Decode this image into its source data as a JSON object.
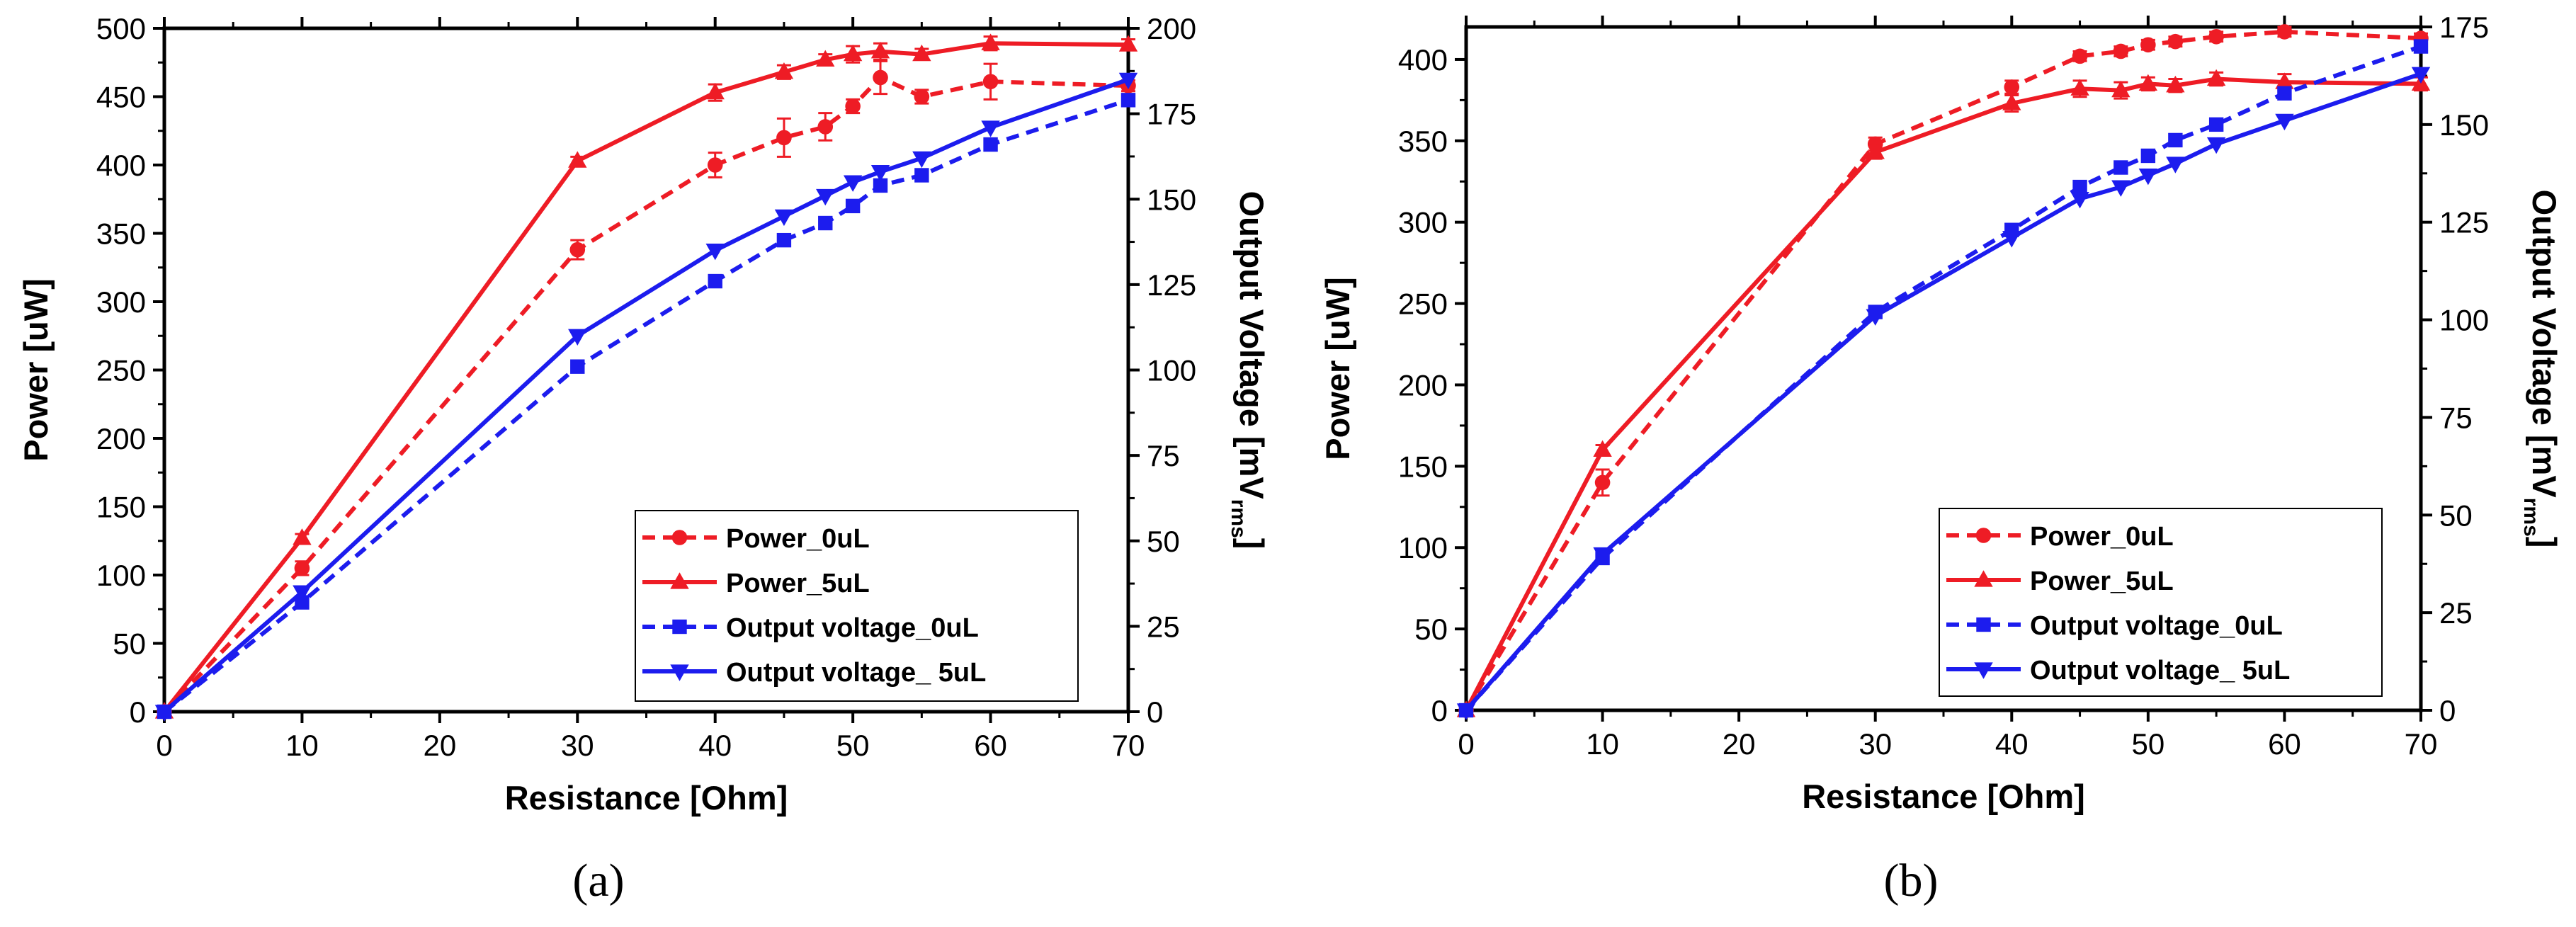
{
  "chart_data": [
    {
      "type": "line",
      "panel_label": "(a)",
      "title": "",
      "xlabel": "Resistance [Ohm]",
      "ylabel_left": "Power [uW]",
      "ylabel_right_main": "Output Voltage [mV",
      "ylabel_right_sub": "rms",
      "ylabel_right_end": "]",
      "xlim": [
        0,
        70
      ],
      "ylim_left": [
        0,
        500
      ],
      "ylim_right": [
        0,
        200
      ],
      "xticks": [
        0,
        10,
        20,
        30,
        40,
        50,
        60,
        70
      ],
      "yticks_left": [
        0,
        50,
        100,
        150,
        200,
        250,
        300,
        350,
        400,
        450,
        500
      ],
      "yticks_right": [
        0,
        25,
        50,
        75,
        100,
        125,
        150,
        175,
        200
      ],
      "grid": false,
      "legend_position": "bottom-right",
      "series": [
        {
          "name": "Power_0uL",
          "axis": "left",
          "color": "#ee1c25",
          "dash": "dashed",
          "marker": "circle",
          "x": [
            0,
            10,
            30,
            40,
            45,
            48,
            50,
            52,
            55,
            60,
            70
          ],
          "y": [
            0,
            105,
            338,
            400,
            420,
            428,
            443,
            464,
            450,
            461,
            458
          ],
          "err": [
            0,
            5,
            7,
            9,
            14,
            10,
            5,
            12,
            5,
            13,
            4
          ]
        },
        {
          "name": "Power_5uL",
          "axis": "left",
          "color": "#ee1c25",
          "dash": "solid",
          "marker": "triangle-up",
          "x": [
            0,
            10,
            30,
            40,
            45,
            48,
            50,
            52,
            55,
            60,
            70
          ],
          "y": [
            0,
            127,
            403,
            453,
            468,
            477,
            481,
            483,
            481,
            489,
            488
          ],
          "err": [
            0,
            3,
            3,
            6,
            5,
            4,
            6,
            6,
            4,
            5,
            4
          ]
        },
        {
          "name": "Output voltage_0uL",
          "axis": "right",
          "color": "#1c1cee",
          "dash": "dashed",
          "marker": "square",
          "x": [
            0,
            10,
            30,
            40,
            45,
            48,
            50,
            52,
            55,
            60,
            70
          ],
          "y": [
            0,
            32,
            101,
            126,
            138,
            143,
            148,
            154,
            157,
            166,
            179
          ]
        },
        {
          "name": "Output voltage_ 5uL",
          "axis": "right",
          "color": "#1c1cee",
          "dash": "solid",
          "marker": "triangle-down",
          "x": [
            0,
            10,
            30,
            40,
            45,
            48,
            50,
            52,
            55,
            60,
            70
          ],
          "y": [
            0,
            35,
            110,
            135,
            145,
            151,
            155,
            158,
            162,
            171,
            185
          ]
        }
      ]
    },
    {
      "type": "line",
      "panel_label": "(b)",
      "title": "",
      "xlabel": "Resistance [Ohm]",
      "ylabel_left": "Power [uW]",
      "ylabel_right_main": "Output Voltage [mV",
      "ylabel_right_sub": "rms",
      "ylabel_right_end": "]",
      "xlim": [
        0,
        70
      ],
      "ylim_left": [
        0,
        420
      ],
      "ylim_right": [
        0,
        175
      ],
      "xticks": [
        0,
        10,
        20,
        30,
        40,
        50,
        60,
        70
      ],
      "yticks_left": [
        0,
        50,
        100,
        150,
        200,
        250,
        300,
        350,
        400
      ],
      "yticks_right": [
        0,
        25,
        50,
        75,
        100,
        125,
        150,
        175
      ],
      "grid": false,
      "legend_position": "bottom-right",
      "series": [
        {
          "name": "Power_0uL",
          "axis": "left",
          "color": "#ee1c25",
          "dash": "dashed",
          "marker": "circle",
          "x": [
            0,
            10,
            30,
            40,
            45,
            48,
            50,
            52,
            55,
            60,
            70
          ],
          "y": [
            0,
            140,
            348,
            383,
            402,
            405,
            409,
            411,
            414,
            417,
            413
          ],
          "err": [
            0,
            8,
            4,
            4,
            3,
            3,
            3,
            3,
            3,
            3,
            3
          ]
        },
        {
          "name": "Power_5uL",
          "axis": "left",
          "color": "#ee1c25",
          "dash": "solid",
          "marker": "triangle-up",
          "x": [
            0,
            10,
            30,
            40,
            45,
            48,
            50,
            52,
            55,
            60,
            70
          ],
          "y": [
            0,
            160,
            343,
            373,
            382,
            381,
            385,
            384,
            388,
            386,
            385
          ],
          "err": [
            0,
            3,
            4,
            5,
            5,
            5,
            4,
            4,
            4,
            5,
            4
          ]
        },
        {
          "name": "Output voltage_0uL",
          "axis": "right",
          "color": "#1c1cee",
          "dash": "dashed",
          "marker": "square",
          "x": [
            0,
            10,
            30,
            40,
            45,
            48,
            50,
            52,
            55,
            60,
            70
          ],
          "y": [
            0,
            39,
            102,
            123,
            134,
            139,
            142,
            146,
            150,
            158,
            170
          ]
        },
        {
          "name": "Output voltage_ 5uL",
          "axis": "right",
          "color": "#1c1cee",
          "dash": "solid",
          "marker": "triangle-down",
          "x": [
            0,
            10,
            30,
            40,
            45,
            48,
            50,
            52,
            55,
            60,
            70
          ],
          "y": [
            0,
            40,
            101,
            121,
            131,
            134,
            137,
            140,
            145,
            151,
            163
          ]
        }
      ]
    }
  ]
}
